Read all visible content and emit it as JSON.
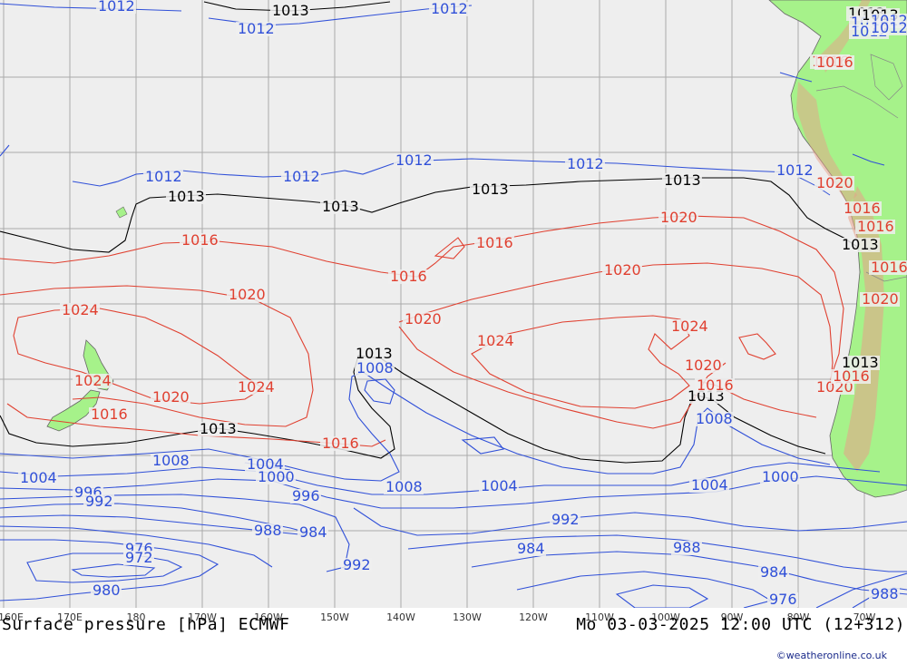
{
  "title": "Surface pressure [hPa] ECMWF",
  "valid_time": "Mo 03-03-2025 12:00 UTC (12+312)",
  "credit": "©weatheronline.co.uk",
  "longitude_ticks": [
    "160E",
    "170E",
    "180",
    "170W",
    "160W",
    "150W",
    "140W",
    "130W",
    "120W",
    "110W",
    "100W",
    "90W",
    "80W",
    "70W"
  ],
  "colors": {
    "ocean": "#eeeeee",
    "land": "#a6f28a",
    "land_shade": "#7fd85e",
    "grid": "#aaaaaa",
    "isobar_low": "#3050d8",
    "isobar_high": "#e04030",
    "isobar_1013": "#000000"
  },
  "isobar_labels": [
    {
      "text": "1012",
      "color": "blue"
    },
    {
      "text": "1013",
      "color": "black"
    },
    {
      "text": "1012",
      "color": "blue"
    },
    {
      "text": "1012",
      "color": "blue"
    },
    {
      "text": "1013",
      "color": "black"
    },
    {
      "text": "1012",
      "color": "blue"
    },
    {
      "text": "1016",
      "color": "red"
    },
    {
      "text": "1012",
      "color": "blue"
    },
    {
      "text": "1016",
      "color": "red"
    },
    {
      "text": "1013",
      "color": "black"
    },
    {
      "text": "1012",
      "color": "blue"
    },
    {
      "text": "1012",
      "color": "blue"
    },
    {
      "text": "1012",
      "color": "blue"
    },
    {
      "text": "1012",
      "color": "blue"
    },
    {
      "text": "1012",
      "color": "blue"
    },
    {
      "text": "1012",
      "color": "blue"
    },
    {
      "text": "1013",
      "color": "black"
    },
    {
      "text": "1013",
      "color": "black"
    },
    {
      "text": "1013",
      "color": "black"
    },
    {
      "text": "1013",
      "color": "black"
    },
    {
      "text": "1012",
      "color": "blue"
    },
    {
      "text": "1020",
      "color": "red"
    },
    {
      "text": "1013",
      "color": "black"
    },
    {
      "text": "1016",
      "color": "red"
    },
    {
      "text": "1016",
      "color": "red"
    },
    {
      "text": "1016",
      "color": "red"
    },
    {
      "text": "1016",
      "color": "red"
    },
    {
      "text": "1020",
      "color": "red"
    },
    {
      "text": "1020",
      "color": "red"
    },
    {
      "text": "1024",
      "color": "red"
    },
    {
      "text": "1020",
      "color": "red"
    },
    {
      "text": "1024",
      "color": "red"
    },
    {
      "text": "1024",
      "color": "red"
    },
    {
      "text": "1020",
      "color": "red"
    },
    {
      "text": "1013",
      "color": "black"
    },
    {
      "text": "1008",
      "color": "blue"
    },
    {
      "text": "1024",
      "color": "red"
    },
    {
      "text": "1020",
      "color": "red"
    },
    {
      "text": "1016",
      "color": "red"
    },
    {
      "text": "1013",
      "color": "black"
    },
    {
      "text": "1013",
      "color": "black"
    },
    {
      "text": "1016",
      "color": "red"
    },
    {
      "text": "1020",
      "color": "red"
    },
    {
      "text": "1016",
      "color": "red"
    },
    {
      "text": "1020",
      "color": "red"
    },
    {
      "text": "1016",
      "color": "red"
    },
    {
      "text": "1008",
      "color": "blue"
    },
    {
      "text": "1024",
      "color": "red"
    },
    {
      "text": "1020",
      "color": "red"
    },
    {
      "text": "1016",
      "color": "red"
    },
    {
      "text": "1013",
      "color": "black"
    },
    {
      "text": "1016",
      "color": "red"
    },
    {
      "text": "1004",
      "color": "blue"
    },
    {
      "text": "1008",
      "color": "blue"
    },
    {
      "text": "1004",
      "color": "blue"
    },
    {
      "text": "1000",
      "color": "blue"
    },
    {
      "text": "996",
      "color": "blue"
    },
    {
      "text": "992",
      "color": "blue"
    },
    {
      "text": "996",
      "color": "blue"
    },
    {
      "text": "1008",
      "color": "blue"
    },
    {
      "text": "1004",
      "color": "blue"
    },
    {
      "text": "1004",
      "color": "blue"
    },
    {
      "text": "1000",
      "color": "blue"
    },
    {
      "text": "988",
      "color": "blue"
    },
    {
      "text": "984",
      "color": "blue"
    },
    {
      "text": "992",
      "color": "blue"
    },
    {
      "text": "992",
      "color": "blue"
    },
    {
      "text": "976",
      "color": "blue"
    },
    {
      "text": "972",
      "color": "blue"
    },
    {
      "text": "984",
      "color": "blue"
    },
    {
      "text": "988",
      "color": "blue"
    },
    {
      "text": "984",
      "color": "blue"
    },
    {
      "text": "980",
      "color": "blue"
    },
    {
      "text": "976",
      "color": "blue"
    },
    {
      "text": "988",
      "color": "blue"
    }
  ]
}
